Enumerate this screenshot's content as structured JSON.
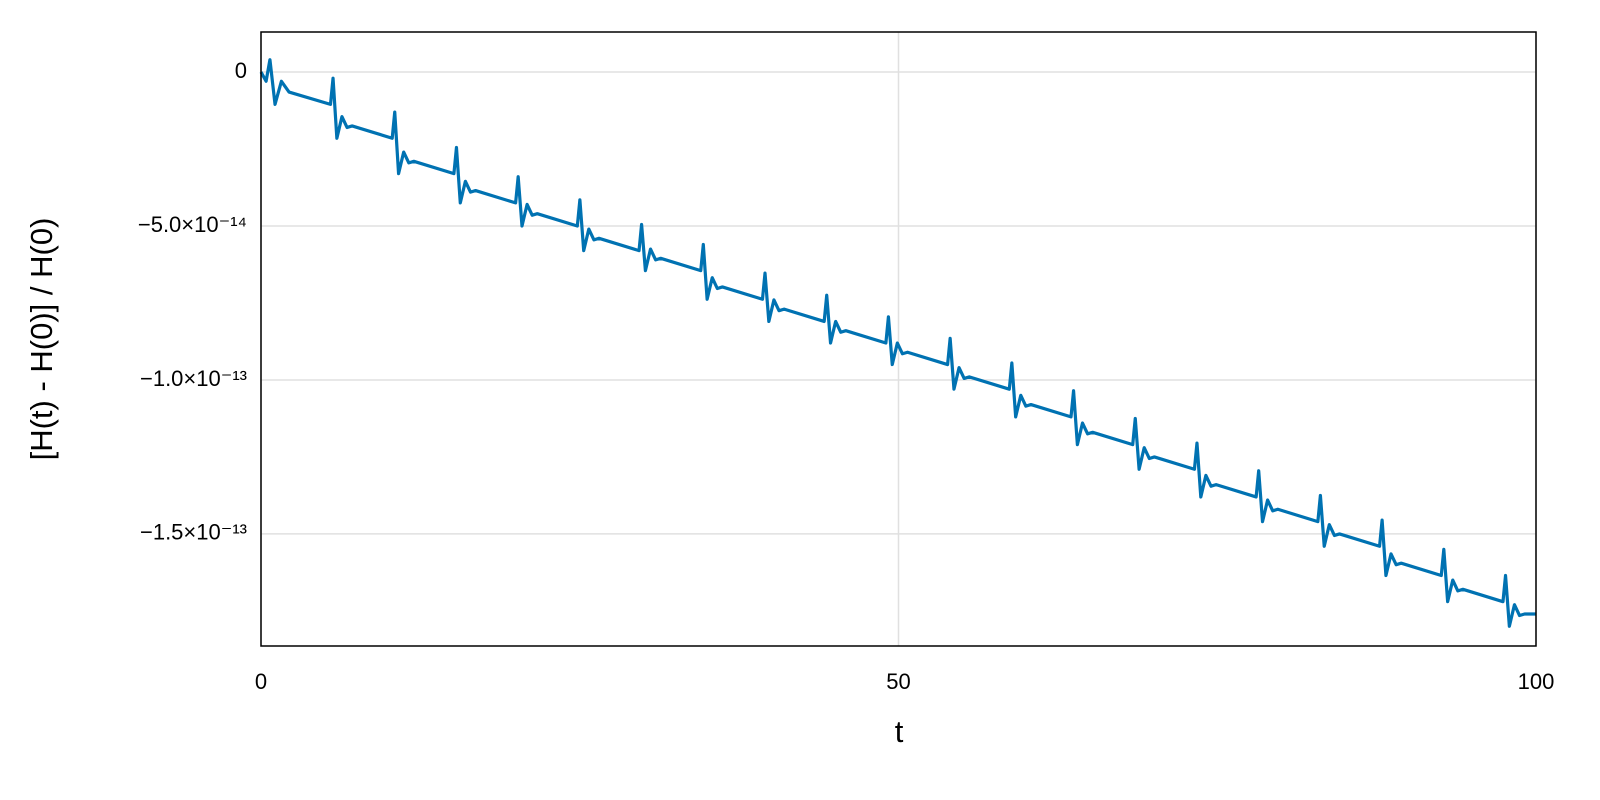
{
  "chart_data": {
    "type": "line",
    "xlabel": "t",
    "ylabel": "[H(t) - H(0)] / H(0)",
    "x": [
      0,
      0.4,
      0.7,
      1.1,
      1.6,
      2.2,
      5.45,
      5.65,
      5.95,
      6.35,
      6.75,
      7.15,
      10.29,
      10.49,
      10.79,
      11.19,
      11.59,
      11.99,
      15.13,
      15.33,
      15.63,
      16.03,
      16.43,
      16.83,
      19.97,
      20.17,
      20.47,
      20.87,
      21.27,
      21.67,
      24.81,
      25.01,
      25.31,
      25.71,
      26.11,
      26.51,
      29.65,
      29.85,
      30.15,
      30.55,
      30.95,
      31.35,
      34.49,
      34.69,
      34.99,
      35.39,
      35.79,
      36.19,
      39.33,
      39.53,
      39.83,
      40.23,
      40.63,
      41.03,
      44.17,
      44.37,
      44.67,
      45.07,
      45.47,
      45.87,
      49.01,
      49.21,
      49.51,
      49.91,
      50.31,
      50.71,
      53.85,
      54.05,
      54.35,
      54.75,
      55.15,
      55.55,
      58.69,
      58.89,
      59.19,
      59.59,
      59.99,
      60.39,
      63.53,
      63.73,
      64.03,
      64.43,
      64.83,
      65.23,
      68.37,
      68.57,
      68.87,
      69.27,
      69.67,
      70.07,
      73.21,
      73.41,
      73.71,
      74.11,
      74.51,
      74.91,
      78.05,
      78.25,
      78.55,
      78.95,
      79.35,
      79.75,
      82.89,
      83.09,
      83.39,
      83.79,
      84.19,
      84.59,
      87.73,
      87.93,
      88.23,
      88.63,
      89.03,
      89.43,
      92.57,
      92.77,
      93.07,
      93.47,
      93.87,
      94.27,
      97.41,
      97.61,
      97.91,
      98.31,
      98.71,
      99.11,
      100
    ],
    "series": [
      {
        "color": "#0072b2",
        "values": [
          0,
          -3e-15,
          4e-15,
          -1.05e-14,
          -3e-15,
          -6.5e-15,
          -1.05e-14,
          -2e-15,
          -2.15e-14,
          -1.45e-14,
          -1.8e-14,
          -1.75e-14,
          -2.15e-14,
          -1.3e-14,
          -3.3e-14,
          -2.6e-14,
          -2.95e-14,
          -2.9e-14,
          -3.3e-14,
          -2.45e-14,
          -4.25e-14,
          -3.55e-14,
          -3.9e-14,
          -3.85e-14,
          -4.25e-14,
          -3.4e-14,
          -5e-14,
          -4.3e-14,
          -4.65e-14,
          -4.6e-14,
          -5e-14,
          -4.15e-14,
          -5.8e-14,
          -5.1e-14,
          -5.45e-14,
          -5.4e-14,
          -5.8e-14,
          -4.95e-14,
          -6.45e-14,
          -5.75e-14,
          -6.1e-14,
          -6.05e-14,
          -6.45e-14,
          -5.6e-14,
          -7.38e-14,
          -6.68e-14,
          -7.03e-14,
          -6.98e-14,
          -7.38e-14,
          -6.53e-14,
          -8.1e-14,
          -7.4e-14,
          -7.75e-14,
          -7.7e-14,
          -8.1e-14,
          -7.25e-14,
          -8.8e-14,
          -8.1e-14,
          -8.45e-14,
          -8.4e-14,
          -8.8e-14,
          -7.95e-14,
          -9.5e-14,
          -8.8e-14,
          -9.15e-14,
          -9.1e-14,
          -9.5e-14,
          -8.65e-14,
          -1.03e-13,
          -9.6e-14,
          -9.95e-14,
          -9.9e-14,
          -1.03e-13,
          -9.45e-14,
          -1.12e-13,
          -1.05e-13,
          -1.085e-13,
          -1.08e-13,
          -1.12e-13,
          -1.035e-13,
          -1.21e-13,
          -1.14e-13,
          -1.175e-13,
          -1.17e-13,
          -1.21e-13,
          -1.125e-13,
          -1.29e-13,
          -1.22e-13,
          -1.255e-13,
          -1.25e-13,
          -1.29e-13,
          -1.205e-13,
          -1.38e-13,
          -1.31e-13,
          -1.345e-13,
          -1.34e-13,
          -1.38e-13,
          -1.295e-13,
          -1.46e-13,
          -1.39e-13,
          -1.425e-13,
          -1.42e-13,
          -1.46e-13,
          -1.375e-13,
          -1.54e-13,
          -1.47e-13,
          -1.505e-13,
          -1.5e-13,
          -1.54e-13,
          -1.455e-13,
          -1.635e-13,
          -1.565e-13,
          -1.6e-13,
          -1.595e-13,
          -1.635e-13,
          -1.55e-13,
          -1.72e-13,
          -1.65e-13,
          -1.685e-13,
          -1.68e-13,
          -1.72e-13,
          -1.635e-13,
          -1.8e-13,
          -1.73e-13,
          -1.765e-13,
          -1.76e-13,
          -1.76e-13
        ]
      }
    ],
    "xlim": [
      0,
      100
    ],
    "xticks": [
      0,
      50,
      100
    ],
    "ylim": [
      -1.864e-13,
      1.3e-14
    ],
    "yticks": [
      0,
      {
        "value": -5e-14,
        "label": "−5.0×10⁻¹⁴"
      },
      {
        "value": -1e-13,
        "label": "−1.0×10⁻¹³"
      },
      {
        "value": -1.5e-13,
        "label": "−1.5×10⁻¹³"
      }
    ],
    "grid": true
  }
}
